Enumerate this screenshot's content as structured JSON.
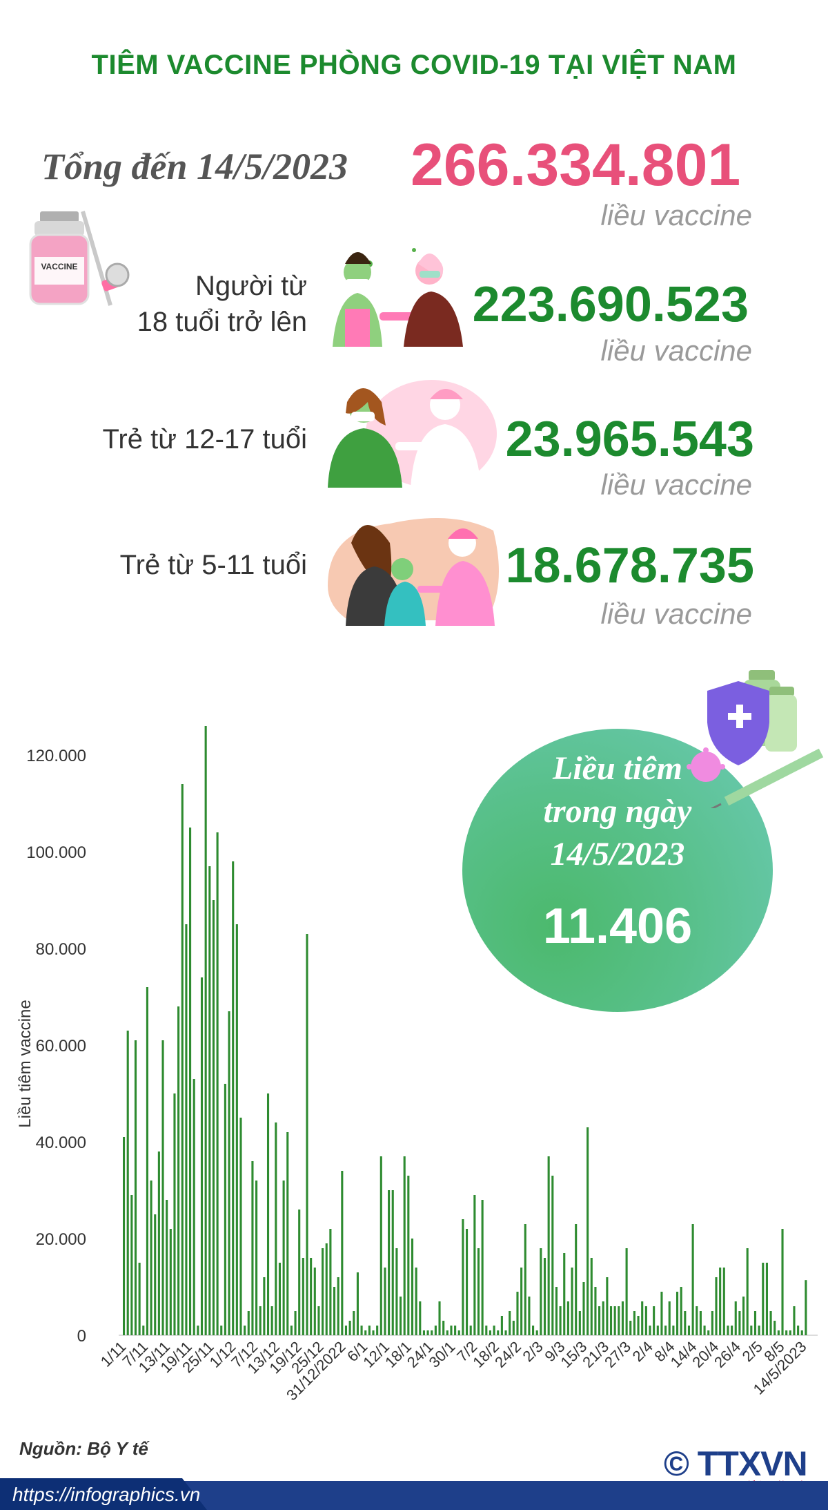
{
  "title": "TIÊM VACCINE PHÒNG COVID-19 TẠI VIỆT NAM",
  "total": {
    "label": "Tổng đến 14/5/2023",
    "value": "266.334.801",
    "unit": "liều vaccine"
  },
  "groups": [
    {
      "label_lines": [
        "Người từ",
        "18 tuổi trở lên"
      ],
      "value": "223.690.523",
      "unit": "liều vaccine"
    },
    {
      "label_lines": [
        "Trẻ từ 12-17 tuổi"
      ],
      "value": "23.965.543",
      "unit": "liều vaccine"
    },
    {
      "label_lines": [
        "Trẻ từ 5-11 tuổi"
      ],
      "value": "18.678.735",
      "unit": "liều vaccine"
    }
  ],
  "daily": {
    "lines": [
      "Liều tiêm",
      "trong ngày",
      "14/5/2023"
    ],
    "value": "11.406"
  },
  "vial_label": "VACCINE",
  "colors": {
    "title_green": "#1c8a2e",
    "total_pink": "#e8507a",
    "bar_green": "#2e8b30",
    "footer_blue": "#1e3f8a"
  },
  "chart_data": {
    "type": "bar",
    "ylabel": "Liều tiêm vaccine",
    "ylim": [
      0,
      125000
    ],
    "yticks": [
      0,
      20000,
      40000,
      60000,
      80000,
      100000,
      120000
    ],
    "ytick_labels": [
      "0",
      "20.000",
      "40.000",
      "60.000",
      "80.000",
      "100.000",
      "120.000"
    ],
    "xtick_labels": [
      "1/11",
      "7/11",
      "13/11",
      "19/11",
      "25/11",
      "1/12",
      "7/12",
      "13/12",
      "19/12",
      "25/12",
      "31/12/2022",
      "6/1",
      "12/1",
      "18/1",
      "24/1",
      "30/1",
      "7/2",
      "18/2",
      "24/2",
      "2/3",
      "9/3",
      "15/3",
      "21/3",
      "27/3",
      "2/4",
      "8/4",
      "14/4",
      "20/4",
      "26/4",
      "2/5",
      "8/5",
      "14/5/2023"
    ],
    "grid": false,
    "values": [
      41000,
      63000,
      29000,
      61000,
      15000,
      2000,
      72000,
      32000,
      25000,
      38000,
      61000,
      28000,
      22000,
      50000,
      68000,
      114000,
      85000,
      105000,
      53000,
      2000,
      74000,
      126000,
      97000,
      90000,
      104000,
      2000,
      52000,
      67000,
      98000,
      85000,
      45000,
      2000,
      5000,
      36000,
      32000,
      6000,
      12000,
      50000,
      6000,
      44000,
      15000,
      32000,
      42000,
      2000,
      5000,
      26000,
      16000,
      83000,
      16000,
      14000,
      6000,
      18000,
      19000,
      22000,
      10000,
      12000,
      34000,
      2000,
      3000,
      5000,
      13000,
      2000,
      1000,
      2000,
      1000,
      2000,
      37000,
      14000,
      30000,
      30000,
      18000,
      8000,
      37000,
      33000,
      20000,
      14000,
      7000,
      1000,
      1000,
      1000,
      2000,
      7000,
      3000,
      1000,
      2000,
      2000,
      1000,
      24000,
      22000,
      2000,
      29000,
      18000,
      28000,
      2000,
      1000,
      2000,
      1000,
      4000,
      1000,
      5000,
      3000,
      9000,
      14000,
      23000,
      8000,
      2000,
      1000,
      18000,
      16000,
      37000,
      33000,
      10000,
      6000,
      17000,
      7000,
      14000,
      23000,
      5000,
      11000,
      43000,
      16000,
      10000,
      6000,
      7000,
      12000,
      6000,
      6000,
      6000,
      7000,
      18000,
      3000,
      5000,
      4000,
      7000,
      6000,
      2000,
      6000,
      2000,
      9000,
      2000,
      7000,
      2000,
      9000,
      10000,
      5000,
      2000,
      23000,
      6000,
      5000,
      2000,
      1000,
      5000,
      12000,
      14000,
      14000,
      2000,
      2000,
      7000,
      5000,
      8000,
      18000,
      2000,
      5000,
      2000,
      15000,
      15000,
      5000,
      3000,
      1000,
      22000,
      1000,
      1000,
      6000,
      2000,
      1000,
      11406
    ]
  }
}
